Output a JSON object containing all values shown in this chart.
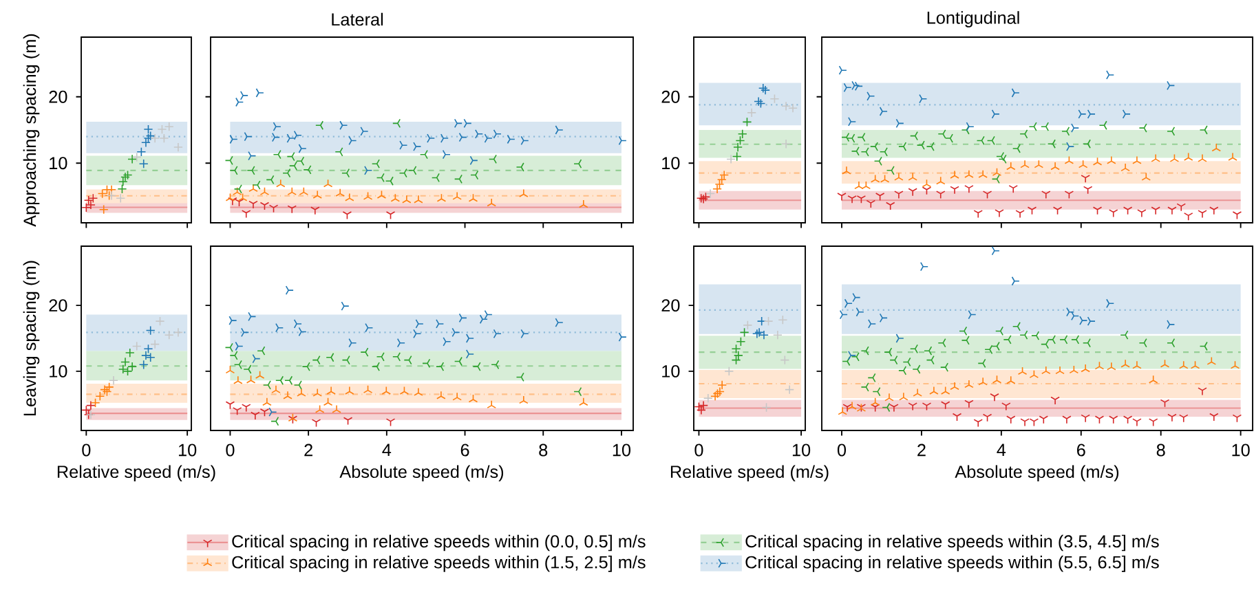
{
  "chart_data": [
    {
      "type": "scatter",
      "annotations": [
        "Lateral"
      ],
      "ylabel": "Approaching spacing (m)",
      "xlim": [
        -0.5,
        10.4
      ],
      "xticks": [
        0,
        10
      ],
      "ylim": [
        1,
        29
      ],
      "yticks": [
        10,
        20
      ],
      "tick_labels": "y",
      "marker": "cross",
      "series": [
        {
          "color": "#d62728",
          "x": [
            0,
            0.23,
            0.68,
            0.45
          ],
          "values": [
            3.3,
            4.4,
            4.7,
            3.7
          ]
        },
        {
          "color": "#ff7f0e",
          "x": [
            1.59,
            2.05,
            2.5,
            1.73,
            2.27
          ],
          "values": [
            5.4,
            6.0,
            6.0,
            3.0,
            5.1
          ]
        },
        {
          "color": "#2ca02c",
          "x": [
            3.64,
            4.1,
            4.55,
            3.86,
            3.55
          ],
          "values": [
            7.2,
            8.2,
            10.6,
            7.9,
            6.1
          ]
        },
        {
          "color": "#1f77b4",
          "x": [
            5.68,
            6.14,
            5.9,
            5.45,
            6.14,
            6.36
          ],
          "values": [
            9.9,
            13.75,
            13.1,
            11.7,
            15.1,
            14.1
          ]
        },
        {
          "color": "#c7c7c7",
          "x": [
            2.5,
            3.4,
            5.0,
            6.8,
            7.5,
            8.2,
            9.1,
            7.7
          ],
          "values": [
            5.1,
            4.7,
            10.9,
            13.75,
            15.1,
            15.5,
            12.4,
            13.75
          ]
        }
      ],
      "ref_lines": [
        {
          "axis": "y",
          "value": 3.33,
          "color": "#eb9394",
          "line_style": "solid"
        },
        {
          "axis": "y",
          "value": 5.07,
          "color": "#ffbf87",
          "line_style": "dashdot"
        },
        {
          "axis": "y",
          "value": 8.9,
          "color": "#95cf95",
          "line_style": "dashed"
        },
        {
          "axis": "y",
          "value": 14.0,
          "color": "#8fbbd9",
          "line_style": "dotted"
        }
      ],
      "bands": [
        {
          "axis": "y",
          "from": 2.5,
          "to": 4.17,
          "color": "#f5d3d4"
        },
        {
          "axis": "y",
          "from": 3.96,
          "to": 6.04,
          "color": "#ffe6d2"
        },
        {
          "axis": "y",
          "from": 6.67,
          "to": 11.1,
          "color": "#d7edd7"
        },
        {
          "axis": "y",
          "from": 11.5,
          "to": 16.25,
          "color": "#d7e5f1"
        }
      ]
    },
    {
      "type": "scatter",
      "xlim": [
        -0.5,
        10.3
      ],
      "xticks": [
        0,
        2,
        4,
        6,
        8,
        10
      ],
      "ylim": [
        1,
        29
      ],
      "yticks": [
        10,
        20
      ],
      "tick_labels": false,
      "marker": "cross",
      "legend": "bottom",
      "series": [
        {
          "name": "Critical spacing in relative speeds within (0.0, 0.5] m/s",
          "color": "#d62728",
          "x": [
            0.06,
            0.23,
            0.41,
            0.59,
            0.88,
            1.11,
            1.58,
            2.17,
            2.99,
            4.1
          ],
          "values": [
            4.4,
            4.2,
            2.5,
            3.9,
            3.7,
            3.3,
            3.2,
            3.0,
            2.3,
            2.3
          ]
        },
        {
          "name": "Critical spacing in relative speeds within (1.5, 2.5] m/s",
          "color": "#ff7f0e",
          "x": [
            0,
            0.18,
            0.32,
            0.59,
            0.88,
            1.29,
            1.58,
            1.88,
            2.23,
            2.5,
            2.81,
            3.05,
            3.52,
            3.87,
            4.22,
            4.51,
            4.81,
            5.4,
            5.8,
            6.21,
            6.68,
            7.5,
            9.03
          ],
          "values": [
            4.7,
            5.6,
            4.7,
            6.1,
            5.6,
            6.8,
            5.6,
            5.6,
            5.1,
            6.8,
            5.4,
            4.7,
            4.9,
            5.1,
            4.6,
            4.4,
            4.4,
            4.6,
            4.9,
            4.6,
            3.9,
            5.3,
            3.7
          ]
        },
        {
          "name": "Critical spacing in relative speeds within (3.5, 4.5] m/s",
          "color": "#2ca02c",
          "x": [
            0,
            0.12,
            0.56,
            0.7,
            0.23,
            1.05,
            1.23,
            1.58,
            1.64,
            1.82,
            1.47,
            2.0,
            2.31,
            2.81,
            2.98,
            3.75,
            3.87,
            4.1,
            4.28,
            4.45,
            4.69,
            4.98,
            5.28,
            5.86,
            6.27,
            6.74,
            7.44,
            8.91
          ],
          "values": [
            10.4,
            8.9,
            8.9,
            6.7,
            6.1,
            7.5,
            11.3,
            11.0,
            9.6,
            10.3,
            8.5,
            9.0,
            15.7,
            11.7,
            8.5,
            9.9,
            7.8,
            7.3,
            16.0,
            8.5,
            8.9,
            11.3,
            7.8,
            7.6,
            8.2,
            10.6,
            9.4,
            9.9
          ]
        },
        {
          "name": "Critical spacing in relative speeds within (5.5, 6.5] m/s",
          "color": "#1f77b4",
          "x": [
            0.06,
            0.21,
            0.33,
            0.73,
            0.43,
            0.53,
            1.17,
            1.14,
            1.52,
            1.7,
            1.82,
            2.87,
            3.1,
            3.4,
            3.5,
            4.4,
            4.75,
            5.1,
            5.45,
            5.5,
            5.8,
            5.92,
            6.04,
            6.2,
            6.33,
            6.57,
            6.8,
            7.15,
            7.5,
            8.38,
            10.0
          ],
          "values": [
            13.6,
            19.2,
            20.2,
            20.6,
            14.0,
            11.1,
            15.5,
            13.9,
            13.75,
            14.2,
            12.2,
            15.7,
            13.4,
            14.8,
            8.9,
            12.7,
            12.5,
            13.75,
            13.75,
            11.3,
            16.0,
            13.9,
            16.0,
            10.4,
            14.4,
            13.75,
            14.4,
            13.6,
            13.4,
            15.0,
            13.4
          ]
        }
      ],
      "ref_lines": [
        {
          "axis": "y",
          "value": 3.33,
          "color": "#eb9394",
          "line_style": "solid"
        },
        {
          "axis": "y",
          "value": 5.07,
          "color": "#ffbf87",
          "line_style": "dashdot"
        },
        {
          "axis": "y",
          "value": 8.9,
          "color": "#95cf95",
          "line_style": "dashed"
        },
        {
          "axis": "y",
          "value": 14.0,
          "color": "#8fbbd9",
          "line_style": "dotted"
        }
      ],
      "bands": [
        {
          "axis": "y",
          "from": 2.5,
          "to": 4.17,
          "color": "#f5d3d4"
        },
        {
          "axis": "y",
          "from": 3.96,
          "to": 6.04,
          "color": "#ffe6d2"
        },
        {
          "axis": "y",
          "from": 6.67,
          "to": 11.1,
          "color": "#d7edd7"
        },
        {
          "axis": "y",
          "from": 11.5,
          "to": 16.25,
          "color": "#d7e5f1"
        }
      ]
    },
    {
      "type": "scatter",
      "annotations": [
        "Lontigudinal"
      ],
      "xlim": [
        -0.5,
        10.4
      ],
      "xticks": [
        0,
        10
      ],
      "ylim": [
        1,
        29
      ],
      "yticks": [
        10,
        20
      ],
      "tick_labels": "y",
      "marker": "cross",
      "series": [
        {
          "color": "#d62728",
          "x": [
            0.22,
            0.67,
            0.45
          ],
          "values": [
            4.7,
            4.9,
            4.6
          ]
        },
        {
          "color": "#ff7f0e",
          "x": [
            1.79,
            2.24,
            2.47,
            2.02
          ],
          "values": [
            6.1,
            7.5,
            8.2,
            6.8
          ]
        },
        {
          "color": "#2ca02c",
          "x": [
            3.81,
            4.26,
            4.71,
            4.04,
            3.72
          ],
          "values": [
            12.4,
            14.4,
            16.2,
            13.4,
            11.0
          ]
        },
        {
          "color": "#1f77b4",
          "x": [
            5.83,
            6.28,
            6.5,
            6.05
          ],
          "values": [
            19.3,
            21.3,
            21.0,
            19.0
          ]
        },
        {
          "color": "#c7c7c7",
          "x": [
            1.12,
            3.14,
            5.16,
            7.4,
            8.52,
            9.19,
            8.52
          ],
          "values": [
            5.4,
            10.6,
            17.6,
            19.7,
            18.6,
            18.3,
            12.9
          ]
        }
      ],
      "ref_lines": [
        {
          "axis": "y",
          "value": 4.4,
          "color": "#eb9394",
          "line_style": "solid"
        },
        {
          "axis": "y",
          "value": 8.5,
          "color": "#ffbf87",
          "line_style": "dashdot"
        },
        {
          "axis": "y",
          "value": 12.85,
          "color": "#95cf95",
          "line_style": "dashed"
        },
        {
          "axis": "y",
          "value": 18.8,
          "color": "#8fbbd9",
          "line_style": "dotted"
        }
      ],
      "bands": [
        {
          "axis": "y",
          "from": 3.0,
          "to": 5.8,
          "color": "#f5d3d4"
        },
        {
          "axis": "y",
          "from": 6.9,
          "to": 10.3,
          "color": "#ffe6d2"
        },
        {
          "axis": "y",
          "from": 10.8,
          "to": 15.0,
          "color": "#d7edd7"
        },
        {
          "axis": "y",
          "from": 15.7,
          "to": 22.1,
          "color": "#d7e5f1"
        }
      ]
    },
    {
      "type": "scatter",
      "xlim": [
        -0.5,
        10.3
      ],
      "xticks": [
        0,
        2,
        4,
        6,
        8,
        10
      ],
      "ylim": [
        1,
        29
      ],
      "yticks": [
        10,
        20
      ],
      "tick_labels": false,
      "marker": "cross",
      "series": [
        {
          "color": "#d62728",
          "x": [
            0,
            0.26,
            0.49,
            0.73,
            0.96,
            1.22,
            1.43,
            1.78,
            2.13,
            2.48,
            2.83,
            3.19,
            3.42,
            3.65,
            3.95,
            4.3,
            4.47,
            4.77,
            5.12,
            5.41,
            5.7,
            6.17,
            6.11,
            6.41,
            6.81,
            7.17,
            7.52,
            7.87,
            8.28,
            8.51,
            8.69,
            9.04,
            9.33,
            9.91
          ],
          "values": [
            5.1,
            4.7,
            4.7,
            4.0,
            5.1,
            3.7,
            5.4,
            5.8,
            6.0,
            5.4,
            6.1,
            6.25,
            2.5,
            5.4,
            2.6,
            6.25,
            2.5,
            3.0,
            5.4,
            3.0,
            5.4,
            6.1,
            7.8,
            3.0,
            2.6,
            3.0,
            2.6,
            3.0,
            3.0,
            3.5,
            2.1,
            2.5,
            3.0,
            2.3
          ]
        },
        {
          "color": "#ff7f0e",
          "x": [
            0.12,
            0.43,
            0.61,
            0.84,
            1.08,
            1.43,
            1.78,
            2.13,
            2.48,
            2.83,
            3.19,
            3.54,
            3.89,
            4.24,
            4.59,
            4.94,
            5.35,
            5.7,
            6.05,
            6.41,
            6.76,
            7.11,
            7.4,
            7.63,
            7.87,
            8.34,
            8.69,
            9.04,
            9.39,
            9.8
          ],
          "values": [
            8.75,
            6.5,
            6.5,
            7.5,
            7.5,
            7.8,
            7.8,
            6.8,
            7.2,
            8.1,
            8.2,
            8.2,
            8.5,
            9.4,
            9.7,
            9.7,
            9.4,
            10.3,
            9.7,
            10.1,
            10.3,
            9.2,
            10.3,
            7.8,
            10.6,
            10.6,
            10.8,
            10.6,
            12.2,
            10.8
          ]
        },
        {
          "color": "#2ca02c",
          "x": [
            0.12,
            0.26,
            0.52,
            0.37,
            0.61,
            0.84,
            0.94,
            1.08,
            1.25,
            1.55,
            1.84,
            2.01,
            2.25,
            2.54,
            2.72,
            3.13,
            3.51,
            3.77,
            4.0,
            4.06,
            3.89,
            4.41,
            4.59,
            4.82,
            5.12,
            5.29,
            5.64,
            6.17,
            6.58,
            7.58,
            8.28,
            9.1
          ],
          "values": [
            13.9,
            13.75,
            13.9,
            11.8,
            11.7,
            12.5,
            10.3,
            11.7,
            8.9,
            12.5,
            14.1,
            12.7,
            12.5,
            14.4,
            13.75,
            15.0,
            13.4,
            13.4,
            11.0,
            10.6,
            7.6,
            12.2,
            14.4,
            15.5,
            15.5,
            12.9,
            14.8,
            12.9,
            15.7,
            15.3,
            14.8,
            15.0
          ]
        },
        {
          "color": "#1f77b4",
          "x": [
            0,
            0.12,
            0.32,
            0.4,
            0.7,
            0.23,
            1.02,
            1.43,
            2.01,
            3.19,
            3.83,
            4.33,
            5.82,
            6.0,
            6.23,
            6.7,
            7.11,
            8.22,
            5.7
          ],
          "values": [
            24.0,
            21.4,
            21.7,
            21.6,
            20.1,
            16.25,
            17.8,
            16.0,
            19.7,
            15.5,
            17.4,
            20.6,
            15.3,
            17.4,
            17.4,
            23.3,
            17.4,
            21.7,
            12.5
          ]
        }
      ],
      "ref_lines": [
        {
          "axis": "y",
          "value": 4.4,
          "color": "#eb9394",
          "line_style": "solid"
        },
        {
          "axis": "y",
          "value": 8.5,
          "color": "#ffbf87",
          "line_style": "dashdot"
        },
        {
          "axis": "y",
          "value": 12.85,
          "color": "#95cf95",
          "line_style": "dashed"
        },
        {
          "axis": "y",
          "value": 18.8,
          "color": "#8fbbd9",
          "line_style": "dotted"
        }
      ],
      "bands": [
        {
          "axis": "y",
          "from": 3.0,
          "to": 5.8,
          "color": "#f5d3d4"
        },
        {
          "axis": "y",
          "from": 6.9,
          "to": 10.3,
          "color": "#ffe6d2"
        },
        {
          "axis": "y",
          "from": 10.8,
          "to": 15.0,
          "color": "#d7edd7"
        },
        {
          "axis": "y",
          "from": 15.7,
          "to": 22.1,
          "color": "#d7e5f1"
        }
      ]
    },
    {
      "type": "scatter",
      "xlabel": "Relative speed (m/s)",
      "ylabel": "Leaving spacing (m)",
      "xlim": [
        -0.5,
        10.4
      ],
      "xticks": [
        0,
        10
      ],
      "ylim": [
        1,
        29
      ],
      "yticks": [
        10,
        20
      ],
      "marker": "cross",
      "series": [
        {
          "color": "#d62728",
          "x": [
            0,
            0.23,
            0.45
          ],
          "values": [
            4.1,
            3.4,
            4.8
          ]
        },
        {
          "color": "#ff7f0e",
          "x": [
            0.9,
            1.36,
            1.82,
            2.27,
            2.05
          ],
          "values": [
            5.2,
            6.2,
            7.2,
            7.6,
            6.9
          ]
        },
        {
          "color": "#2ca02c",
          "x": [
            3.64,
            4.1,
            4.32,
            3.86,
            4.55
          ],
          "values": [
            10.3,
            10.0,
            12.8,
            11.4,
            10.7
          ]
        },
        {
          "color": "#1f77b4",
          "x": [
            5.68,
            6.14,
            6.36,
            5.9,
            6.36
          ],
          "values": [
            11.0,
            13.4,
            16.2,
            12.4,
            12.1
          ]
        },
        {
          "color": "#c7c7c7",
          "x": [
            0.45,
            2.7,
            5.0,
            6.8,
            7.3,
            8.2,
            9.1
          ],
          "values": [
            3.4,
            8.6,
            13.8,
            14.1,
            17.6,
            15.5,
            15.9
          ]
        }
      ],
      "ref_lines": [
        {
          "axis": "y",
          "value": 3.6,
          "color": "#eb9394",
          "line_style": "solid"
        },
        {
          "axis": "y",
          "value": 6.5,
          "color": "#ffbf87",
          "line_style": "dashdot"
        },
        {
          "axis": "y",
          "value": 10.8,
          "color": "#95cf95",
          "line_style": "dashed"
        },
        {
          "axis": "y",
          "value": 15.9,
          "color": "#8fbbd9",
          "line_style": "dotted"
        }
      ],
      "bands": [
        {
          "axis": "y",
          "from": 2.6,
          "to": 4.4,
          "color": "#f5d3d4"
        },
        {
          "axis": "y",
          "from": 5.2,
          "to": 8.1,
          "color": "#ffe6d2"
        },
        {
          "axis": "y",
          "from": 8.6,
          "to": 13.1,
          "color": "#d7edd7"
        },
        {
          "axis": "y",
          "from": 13.1,
          "to": 18.6,
          "color": "#d7e5f1"
        }
      ]
    },
    {
      "type": "scatter",
      "xlabel": "Absolute speed (m/s)",
      "xlim": [
        -0.5,
        10.3
      ],
      "xticks": [
        0,
        2,
        4,
        6,
        8,
        10
      ],
      "ylim": [
        1,
        29
      ],
      "yticks": [
        10,
        20
      ],
      "tick_labels": "x",
      "marker": "cross",
      "series": [
        {
          "color": "#d62728",
          "x": [
            0,
            0.18,
            0.41,
            0.64,
            0.88,
            1.6,
            2.2,
            3.01,
            4.1
          ],
          "values": [
            5.0,
            4.1,
            4.6,
            3.4,
            3.9,
            2.8,
            2.3,
            2.6,
            2.4
          ]
        },
        {
          "color": "#ff7f0e",
          "x": [
            0,
            0.2,
            0.53,
            0.76,
            0.94,
            1.17,
            1.47,
            1.82,
            2.23,
            2.58,
            3.05,
            3.52,
            3.99,
            4.45,
            4.81,
            5.39,
            5.8,
            6.21,
            6.68,
            7.5,
            9.03,
            2.29,
            2.72,
            2.5,
            1.6
          ],
          "values": [
            10.1,
            8.5,
            8.6,
            9.3,
            5.2,
            7.1,
            6.2,
            6.6,
            6.6,
            6.9,
            6.9,
            7.1,
            6.9,
            6.9,
            6.7,
            6.2,
            6.0,
            5.7,
            4.8,
            5.5,
            5.2,
            4.1,
            4.1,
            5.2,
            2.8
          ]
        },
        {
          "color": "#2ca02c",
          "x": [
            0,
            0.12,
            0.23,
            0.47,
            0.82,
            0.97,
            1.29,
            1.52,
            1.76,
            1.97,
            2.23,
            2.58,
            2.99,
            3.46,
            3.75,
            3.87,
            4.28,
            4.57,
            5.04,
            5.39,
            5.86,
            6.33,
            6.8,
            7.44,
            8.91,
            1.17
          ],
          "values": [
            13.6,
            12.4,
            11.0,
            10.3,
            13.1,
            7.9,
            8.6,
            8.6,
            7.9,
            10.7,
            11.7,
            12.1,
            11.7,
            12.9,
            10.7,
            12.2,
            12.2,
            11.7,
            11.2,
            10.7,
            11.5,
            10.7,
            11.0,
            9.1,
            6.9,
            2.4
          ]
        },
        {
          "color": "#1f77b4",
          "x": [
            0.04,
            1.49,
            2.91,
            0.53,
            0.2,
            0.35,
            1.23,
            1.7,
            1.82,
            3.1,
            3.52,
            4.34,
            4.81,
            4.75,
            5.33,
            5.51,
            5.74,
            5.92,
            6.1,
            6.45,
            6.57,
            6.8,
            7.5,
            8.38,
            10.0,
            6.1,
            1.06,
            0.64
          ],
          "values": [
            17.7,
            22.3,
            19.9,
            18.3,
            13.8,
            15.9,
            16.6,
            17.2,
            16.0,
            14.3,
            16.6,
            14.3,
            17.2,
            15.7,
            17.2,
            14.5,
            15.9,
            18.1,
            15.0,
            17.9,
            18.6,
            15.7,
            15.7,
            17.4,
            15.2,
            12.6,
            3.8,
            11.9
          ]
        }
      ],
      "ref_lines": [
        {
          "axis": "y",
          "value": 3.6,
          "color": "#eb9394",
          "line_style": "solid"
        },
        {
          "axis": "y",
          "value": 6.5,
          "color": "#ffbf87",
          "line_style": "dashdot"
        },
        {
          "axis": "y",
          "value": 10.8,
          "color": "#95cf95",
          "line_style": "dashed"
        },
        {
          "axis": "y",
          "value": 15.9,
          "color": "#8fbbd9",
          "line_style": "dotted"
        }
      ],
      "bands": [
        {
          "axis": "y",
          "from": 2.6,
          "to": 4.4,
          "color": "#f5d3d4"
        },
        {
          "axis": "y",
          "from": 5.2,
          "to": 8.1,
          "color": "#ffe6d2"
        },
        {
          "axis": "y",
          "from": 8.6,
          "to": 13.1,
          "color": "#d7edd7"
        },
        {
          "axis": "y",
          "from": 13.1,
          "to": 18.6,
          "color": "#d7e5f1"
        }
      ]
    },
    {
      "type": "scatter",
      "xlabel": "Relative speed (m/s)",
      "xlim": [
        -0.5,
        10.4
      ],
      "xticks": [
        0,
        10
      ],
      "ylim": [
        1,
        29
      ],
      "yticks": [
        10,
        20
      ],
      "marker": "cross",
      "series": [
        {
          "color": "#d62728",
          "x": [
            0,
            0.45,
            0.23
          ],
          "values": [
            4.6,
            4.8,
            4.1
          ]
        },
        {
          "color": "#ff7f0e",
          "x": [
            1.59,
            2.05,
            2.27,
            1.82
          ],
          "values": [
            6.2,
            6.9,
            7.9,
            6.6
          ]
        },
        {
          "color": "#2ca02c",
          "x": [
            3.64,
            4.1,
            4.45,
            3.86,
            3.64
          ],
          "values": [
            13.4,
            14.5,
            15.9,
            12.4,
            11.7
          ]
        },
        {
          "color": "#1f77b4",
          "x": [
            5.9,
            6.14,
            6.36,
            5.68
          ],
          "values": [
            15.9,
            17.6,
            15.5,
            15.7
          ]
        },
        {
          "color": "#c7c7c7",
          "x": [
            0.9,
            2.95,
            4.77,
            6.8,
            7.7,
            8.4,
            8.86,
            8.2,
            6.6
          ],
          "values": [
            5.9,
            10.0,
            17.0,
            17.6,
            15.5,
            11.7,
            7.2,
            17.8,
            4.5
          ]
        }
      ],
      "ref_lines": [
        {
          "axis": "y",
          "value": 4.4,
          "color": "#eb9394",
          "line_style": "solid"
        },
        {
          "axis": "y",
          "value": 8.1,
          "color": "#ffbf87",
          "line_style": "dashdot"
        },
        {
          "axis": "y",
          "value": 12.9,
          "color": "#95cf95",
          "line_style": "dashed"
        },
        {
          "axis": "y",
          "value": 19.3,
          "color": "#8fbbd9",
          "line_style": "dotted"
        }
      ],
      "bands": [
        {
          "axis": "y",
          "from": 3.1,
          "to": 5.65,
          "color": "#f5d3d4"
        },
        {
          "axis": "y",
          "from": 5.9,
          "to": 10.2,
          "color": "#ffe6d2"
        },
        {
          "axis": "y",
          "from": 10.35,
          "to": 15.4,
          "color": "#d7edd7"
        },
        {
          "axis": "y",
          "from": 15.65,
          "to": 23.2,
          "color": "#d7e5f1"
        }
      ]
    },
    {
      "type": "scatter",
      "xlabel": "Absolute speed (m/s)",
      "xlim": [
        -0.5,
        10.3
      ],
      "xticks": [
        0,
        2,
        4,
        6,
        8,
        10
      ],
      "ylim": [
        1,
        29
      ],
      "yticks": [
        10,
        20
      ],
      "tick_labels": "x",
      "marker": "cross",
      "series": [
        {
          "color": "#d62728",
          "x": [
            0.14,
            0.49,
            0.84,
            1.31,
            1.78,
            2.13,
            2.6,
            2.89,
            3.19,
            3.42,
            3.65,
            3.83,
            4.12,
            4.24,
            4.59,
            4.82,
            5.06,
            5.35,
            5.64,
            6.11,
            6.46,
            6.81,
            7.17,
            7.4,
            7.81,
            8.1,
            8.28,
            8.57,
            9.04,
            9.33,
            9.91
          ],
          "values": [
            4.6,
            4.6,
            4.6,
            4.6,
            4.8,
            4.8,
            5.0,
            3.2,
            5.2,
            2.3,
            3.1,
            6.2,
            4.8,
            2.8,
            2.4,
            2.4,
            2.8,
            5.7,
            2.8,
            3.0,
            2.8,
            2.8,
            2.8,
            2.4,
            2.4,
            5.3,
            3.1,
            3.0,
            7.1,
            3.2,
            3.0
          ]
        },
        {
          "color": "#ff7f0e",
          "x": [
            0.02,
            0.26,
            0.49,
            0.84,
            1.19,
            1.55,
            1.9,
            2.31,
            2.6,
            2.83,
            3.19,
            3.54,
            3.89,
            4.24,
            4.53,
            4.82,
            5.12,
            5.47,
            5.82,
            6.11,
            6.46,
            6.76,
            7.11,
            7.4,
            7.81,
            8.1,
            8.57,
            8.86,
            9.27,
            9.86
          ],
          "values": [
            3.8,
            4.6,
            4.3,
            5.2,
            5.9,
            6.0,
            6.6,
            6.9,
            6.9,
            7.6,
            7.9,
            8.3,
            8.6,
            8.5,
            9.9,
            9.4,
            10.0,
            10.0,
            10.1,
            10.3,
            10.7,
            10.6,
            11.0,
            10.8,
            8.6,
            11.0,
            10.8,
            10.8,
            11.4,
            10.8
          ]
        },
        {
          "color": "#2ca02c",
          "x": [
            0.14,
            0.37,
            0.61,
            0.78,
            0.9,
            0.61,
            1.19,
            1.33,
            1.55,
            1.66,
            1.84,
            1.9,
            2.19,
            2.25,
            2.54,
            2.6,
            3.07,
            3.13,
            3.54,
            3.71,
            3.89,
            3.98,
            4.18,
            4.41,
            4.59,
            4.88,
            5.12,
            5.29,
            5.59,
            5.88,
            6.17,
            7.11,
            7.58,
            8.28,
            9.1,
            1.14
          ],
          "values": [
            11.5,
            12.2,
            13.1,
            9.0,
            6.9,
            7.6,
            12.9,
            11.7,
            10.1,
            11.4,
            13.4,
            10.3,
            13.1,
            11.7,
            14.3,
            10.6,
            16.1,
            14.7,
            11.2,
            13.3,
            13.8,
            16.1,
            14.8,
            16.8,
            15.5,
            15.4,
            14.1,
            14.8,
            14.8,
            14.8,
            14.3,
            15.5,
            14.3,
            14.3,
            13.8,
            4.5
          ]
        },
        {
          "color": "#1f77b4",
          "x": [
            0.02,
            0.14,
            0.34,
            0.43,
            0.73,
            1.02,
            2.04,
            3.24,
            3.83,
            4.33,
            5.7,
            5.82,
            6.03,
            6.23,
            6.7,
            8.22,
            1.43,
            0.23
          ],
          "values": [
            18.6,
            20.3,
            21.2,
            19.0,
            17.2,
            18.1,
            25.9,
            18.6,
            28.3,
            23.7,
            19.0,
            18.4,
            17.7,
            17.6,
            20.3,
            17.1,
            15.0,
            12.4
          ]
        }
      ],
      "ref_lines": [
        {
          "axis": "y",
          "value": 4.4,
          "color": "#eb9394",
          "line_style": "solid"
        },
        {
          "axis": "y",
          "value": 8.1,
          "color": "#ffbf87",
          "line_style": "dashdot"
        },
        {
          "axis": "y",
          "value": 12.9,
          "color": "#95cf95",
          "line_style": "dashed"
        },
        {
          "axis": "y",
          "value": 19.3,
          "color": "#8fbbd9",
          "line_style": "dotted"
        }
      ],
      "bands": [
        {
          "axis": "y",
          "from": 3.1,
          "to": 5.65,
          "color": "#f5d3d4"
        },
        {
          "axis": "y",
          "from": 5.9,
          "to": 10.2,
          "color": "#ffe6d2"
        },
        {
          "axis": "y",
          "from": 10.35,
          "to": 15.4,
          "color": "#d7edd7"
        },
        {
          "axis": "y",
          "from": 15.65,
          "to": 23.2,
          "color": "#d7e5f1"
        }
      ]
    }
  ]
}
